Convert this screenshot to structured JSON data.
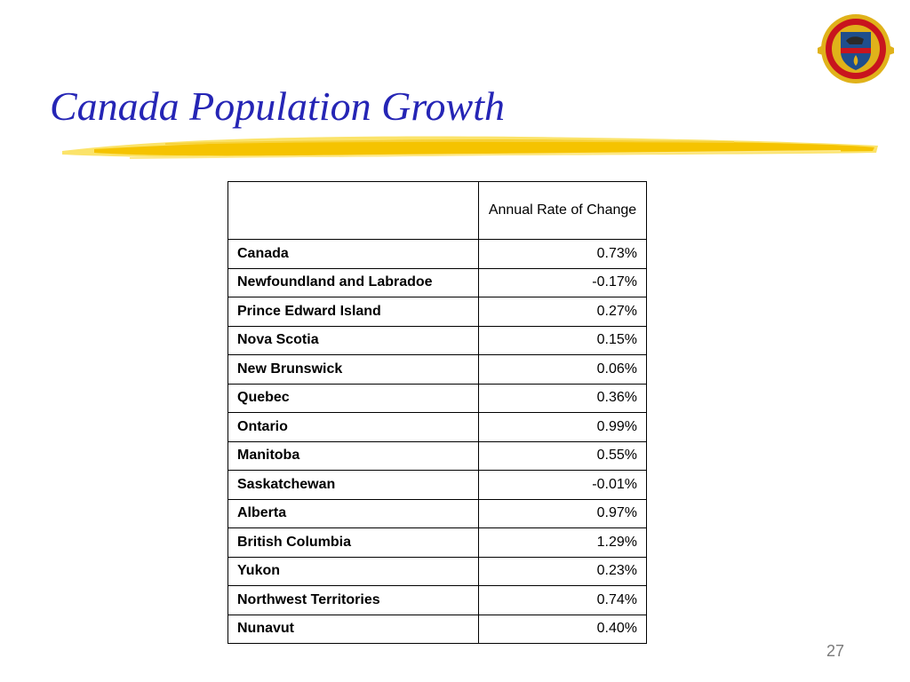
{
  "slide": {
    "title": "Canada Population Growth",
    "page_number": "27"
  },
  "colors": {
    "title": "#2525b5",
    "underline": "#f5c300",
    "underline_light": "#fbe36a",
    "text": "#000000",
    "page_number": "#7a7a7a",
    "logo_ring": "#c8141e",
    "logo_center": "#1f4e8c",
    "logo_gold": "#e0b21a"
  },
  "icons": {
    "logo": "institution-seal-icon",
    "underline": "brush-stroke-underline"
  },
  "table": {
    "header": {
      "region": "",
      "rate": "Annual Rate of Change"
    },
    "rows": [
      {
        "region": "Canada",
        "rate": "0.73%"
      },
      {
        "region": "Newfoundland and Labradoe",
        "rate": "-0.17%"
      },
      {
        "region": "Prince Edward Island",
        "rate": "0.27%"
      },
      {
        "region": "Nova Scotia",
        "rate": "0.15%"
      },
      {
        "region": "New Brunswick",
        "rate": "0.06%"
      },
      {
        "region": "Quebec",
        "rate": "0.36%"
      },
      {
        "region": "Ontario",
        "rate": "0.99%"
      },
      {
        "region": "Manitoba",
        "rate": "0.55%"
      },
      {
        "region": "Saskatchewan",
        "rate": "-0.01%"
      },
      {
        "region": "Alberta",
        "rate": "0.97%"
      },
      {
        "region": "British Columbia",
        "rate": "1.29%"
      },
      {
        "region": "Yukon",
        "rate": "0.23%"
      },
      {
        "region": "Northwest Territories",
        "rate": "0.74%"
      },
      {
        "region": "Nunavut",
        "rate": "0.40%"
      }
    ]
  }
}
